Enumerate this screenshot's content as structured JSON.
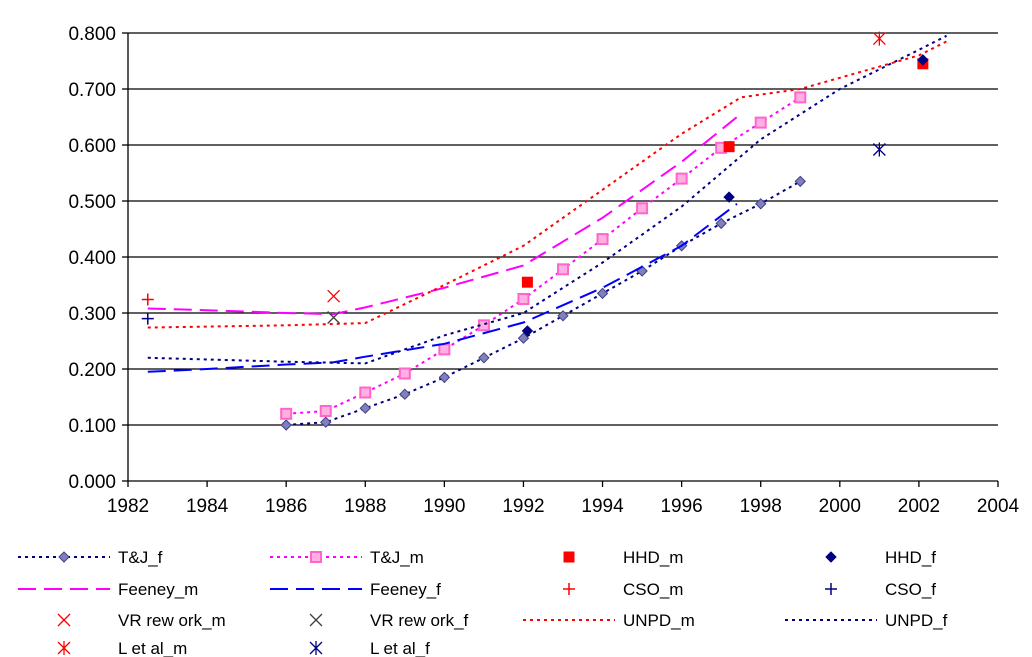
{
  "chart_data": {
    "type": "scatter",
    "title": "",
    "xlabel": "",
    "ylabel": "",
    "xlim": [
      1982,
      2004
    ],
    "ylim": [
      0.0,
      0.8
    ],
    "xticks": [
      "1982",
      "1984",
      "1986",
      "1988",
      "1990",
      "1992",
      "1994",
      "1996",
      "1998",
      "2000",
      "2002",
      "2004"
    ],
    "yticks": [
      "0.000",
      "0.100",
      "0.200",
      "0.300",
      "0.400",
      "0.500",
      "0.600",
      "0.700",
      "0.800"
    ],
    "grid": "horizontal",
    "legend_position": "bottom",
    "series": [
      {
        "name": "T&J_f",
        "kind": "line-marker",
        "marker": "diamond",
        "color": "#8080c0",
        "line_color": "#000080",
        "dash": "3,4",
        "x": [
          1986,
          1987,
          1988,
          1989,
          1990,
          1991,
          1992,
          1993,
          1994,
          1995,
          1996,
          1997,
          1998,
          1999
        ],
        "y": [
          0.1,
          0.105,
          0.13,
          0.155,
          0.185,
          0.22,
          0.255,
          0.295,
          0.335,
          0.375,
          0.42,
          0.46,
          0.495,
          0.535
        ]
      },
      {
        "name": "T&J_m",
        "kind": "line-marker",
        "marker": "square-open",
        "color": "#ff66cc",
        "line_color": "#ff00ff",
        "dash": "3,4",
        "x": [
          1986,
          1987,
          1988,
          1989,
          1990,
          1991,
          1992,
          1993,
          1994,
          1995,
          1996,
          1997,
          1998,
          1999
        ],
        "y": [
          0.12,
          0.125,
          0.158,
          0.192,
          0.235,
          0.278,
          0.325,
          0.378,
          0.432,
          0.487,
          0.54,
          0.595,
          0.64,
          0.685
        ]
      },
      {
        "name": "HHD_m",
        "kind": "marker",
        "marker": "square",
        "color": "#ff0000",
        "x": [
          1992.1,
          1997.2,
          2002.1
        ],
        "y": [
          0.355,
          0.597,
          0.745
        ]
      },
      {
        "name": "HHD_f",
        "kind": "marker",
        "marker": "diamond",
        "color": "#000080",
        "x": [
          1992.1,
          1997.2,
          2002.1
        ],
        "y": [
          0.268,
          0.507,
          0.752
        ]
      },
      {
        "name": "Feeney_m",
        "kind": "line",
        "color": "#ff00ff",
        "dash": "18,8",
        "x": [
          1982.5,
          1984,
          1986,
          1987.2,
          1988,
          1990,
          1992,
          1994,
          1996,
          1997.4
        ],
        "y": [
          0.308,
          0.305,
          0.3,
          0.298,
          0.31,
          0.345,
          0.385,
          0.47,
          0.57,
          0.65
        ]
      },
      {
        "name": "Feeney_f",
        "kind": "line",
        "color": "#0000ff",
        "dash": "18,8",
        "x": [
          1982.5,
          1984,
          1986,
          1987.2,
          1988,
          1990,
          1992,
          1994,
          1996,
          1997.4
        ],
        "y": [
          0.195,
          0.2,
          0.208,
          0.212,
          0.222,
          0.245,
          0.283,
          0.345,
          0.42,
          0.495
        ]
      },
      {
        "name": "CSO_m",
        "kind": "marker",
        "marker": "plus",
        "color": "#ff0000",
        "x": [
          1982.5
        ],
        "y": [
          0.324
        ]
      },
      {
        "name": "CSO_f",
        "kind": "marker",
        "marker": "plus",
        "color": "#000080",
        "x": [
          1982.5
        ],
        "y": [
          0.29
        ]
      },
      {
        "name": "VR rew ork_m",
        "kind": "marker",
        "marker": "x",
        "color": "#ff0000",
        "x": [
          1987.2
        ],
        "y": [
          0.33
        ]
      },
      {
        "name": "VR rew ork_f",
        "kind": "marker",
        "marker": "x",
        "color": "#404040",
        "x": [
          1987.2
        ],
        "y": [
          0.292
        ]
      },
      {
        "name": "UNPD_m",
        "kind": "line",
        "color": "#ff0000",
        "dash": "3,4",
        "x": [
          1982.5,
          1986,
          1988,
          1990,
          1992,
          1994,
          1996,
          1997.5,
          1999,
          2000,
          2002,
          2002.7
        ],
        "y": [
          0.274,
          0.278,
          0.282,
          0.35,
          0.42,
          0.52,
          0.62,
          0.685,
          0.7,
          0.72,
          0.76,
          0.785
        ]
      },
      {
        "name": "UNPD_f",
        "kind": "line",
        "color": "#000080",
        "dash": "3,4",
        "x": [
          1982.5,
          1986,
          1988,
          1990,
          1992,
          1994,
          1996,
          1998,
          2000,
          2002,
          2002.7
        ],
        "y": [
          0.22,
          0.213,
          0.21,
          0.26,
          0.3,
          0.39,
          0.49,
          0.61,
          0.7,
          0.77,
          0.795
        ]
      },
      {
        "name": "L et al_m",
        "kind": "marker",
        "marker": "asterisk",
        "color": "#ff0000",
        "x": [
          2001
        ],
        "y": [
          0.79
        ]
      },
      {
        "name": "L et al_f",
        "kind": "marker",
        "marker": "asterisk",
        "color": "#000080",
        "x": [
          2001
        ],
        "y": [
          0.592
        ]
      }
    ]
  }
}
